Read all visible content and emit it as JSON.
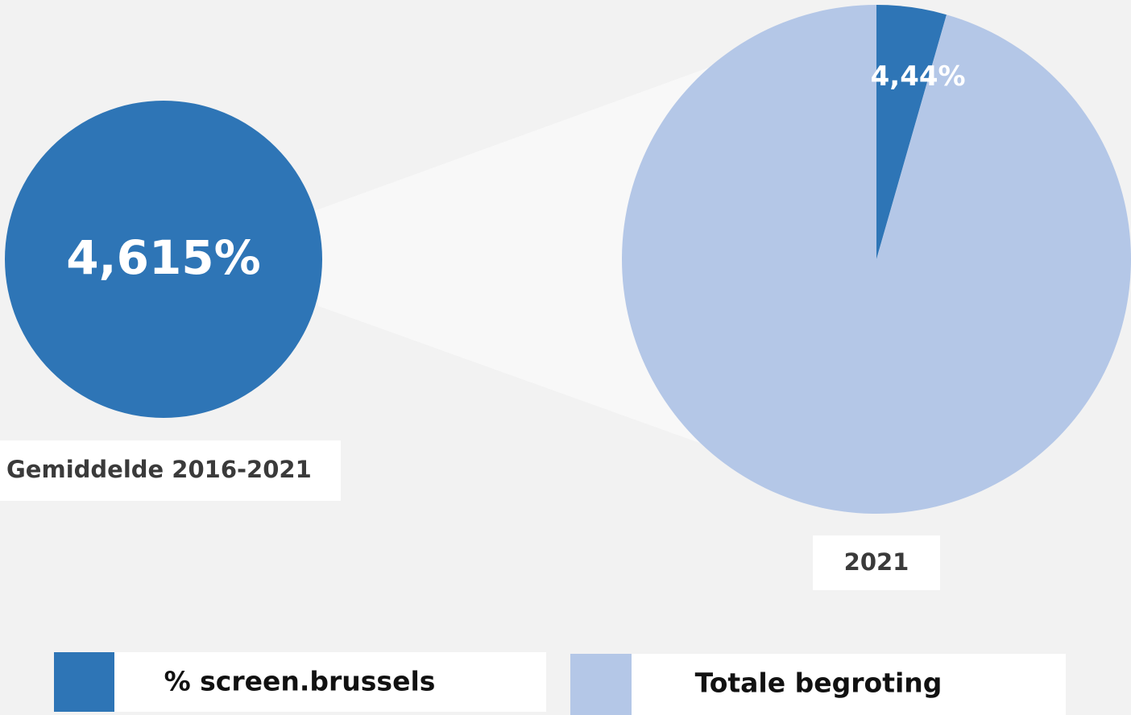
{
  "chart_data": {
    "type": "pie",
    "caption": "2021",
    "categories": [
      "% screen.brussels",
      "Totale begroting"
    ],
    "values": [
      4.44,
      95.56
    ],
    "value_labels": [
      "4,44%",
      null
    ],
    "colors": [
      "#2e75b6",
      "#b4c7e7"
    ],
    "average": {
      "value": 4.615,
      "label": "4,615%",
      "caption": "Gemiddelde 2016-2021"
    }
  }
}
